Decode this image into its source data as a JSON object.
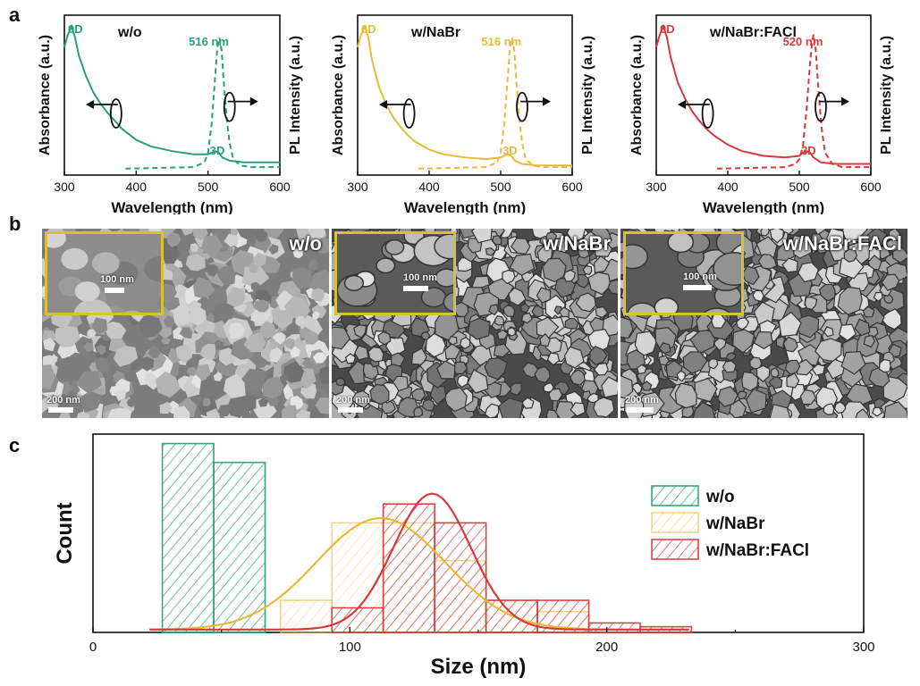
{
  "panel_letters": [
    "a",
    "b",
    "c"
  ],
  "colors": {
    "green": "#2e9e7a",
    "yellow": "#e8b93a",
    "red": "#d63a3a",
    "axis": "#111111",
    "inset_border": "#d6c13a"
  },
  "chart_data": [
    {
      "type": "line",
      "panel": "a",
      "xlabel": "Wavelength (nm)",
      "ylabel_left": "Absorbance (a.u.)",
      "ylabel_right": "PL Intensity (a.u.)",
      "xlim": [
        300,
        600
      ],
      "xticks": [
        300,
        400,
        500,
        600
      ],
      "sample_label": "w/o",
      "label_0d": "0D",
      "label_3d": "3D",
      "peak_label": "516 nm",
      "peak_nm": 516,
      "color": "#2e9e7a",
      "series": [
        {
          "name": "Absorbance",
          "style": "solid",
          "x": [
            300,
            305,
            310,
            315,
            320,
            330,
            340,
            350,
            360,
            370,
            380,
            400,
            420,
            450,
            480,
            500,
            505,
            510,
            515,
            520,
            530,
            550,
            600
          ],
          "y": [
            0.8,
            0.88,
            0.93,
            0.86,
            0.75,
            0.62,
            0.52,
            0.45,
            0.39,
            0.34,
            0.29,
            0.22,
            0.18,
            0.15,
            0.13,
            0.13,
            0.14,
            0.15,
            0.14,
            0.11,
            0.09,
            0.08,
            0.08
          ]
        },
        {
          "name": "PL",
          "style": "dashed",
          "x": [
            385,
            480,
            495,
            500,
            505,
            510,
            513,
            516,
            519,
            522,
            526,
            530,
            535,
            545,
            560,
            600
          ],
          "y": [
            0.04,
            0.05,
            0.08,
            0.14,
            0.32,
            0.62,
            0.8,
            0.86,
            0.78,
            0.58,
            0.35,
            0.2,
            0.1,
            0.06,
            0.05,
            0.05
          ]
        }
      ]
    },
    {
      "type": "line",
      "panel": "a",
      "xlabel": "Wavelength (nm)",
      "ylabel_left": "Absorbance (a.u.)",
      "ylabel_right": "PL Intensity (a.u.)",
      "xlim": [
        300,
        600
      ],
      "xticks": [
        300,
        400,
        500,
        600
      ],
      "sample_label": "w/NaBr",
      "label_0d": "0D",
      "label_3d": "3D",
      "peak_label": "516 nm",
      "peak_nm": 516,
      "color": "#e8b93a",
      "series": [
        {
          "name": "Absorbance",
          "style": "solid",
          "x": [
            300,
            305,
            310,
            315,
            320,
            330,
            340,
            350,
            360,
            370,
            380,
            400,
            420,
            450,
            480,
            500,
            505,
            510,
            515,
            520,
            530,
            550,
            600
          ],
          "y": [
            0.8,
            0.88,
            0.93,
            0.86,
            0.72,
            0.55,
            0.44,
            0.36,
            0.3,
            0.25,
            0.21,
            0.16,
            0.13,
            0.11,
            0.1,
            0.11,
            0.12,
            0.13,
            0.12,
            0.09,
            0.07,
            0.06,
            0.06
          ]
        },
        {
          "name": "PL",
          "style": "dashed",
          "x": [
            385,
            480,
            495,
            500,
            505,
            510,
            513,
            516,
            519,
            522,
            526,
            530,
            535,
            545,
            560,
            600
          ],
          "y": [
            0.04,
            0.05,
            0.08,
            0.14,
            0.32,
            0.62,
            0.8,
            0.86,
            0.78,
            0.58,
            0.35,
            0.2,
            0.1,
            0.06,
            0.05,
            0.05
          ]
        }
      ]
    },
    {
      "type": "line",
      "panel": "a",
      "xlabel": "Wavelength (nm)",
      "ylabel_left": "Absorbance (a.u.)",
      "ylabel_right": "PL Intensity (a.u.)",
      "xlim": [
        300,
        600
      ],
      "xticks": [
        300,
        400,
        500,
        600
      ],
      "sample_label": "w/NaBr:FACl",
      "label_0d": "0D",
      "label_3d": "3D",
      "peak_label": "520 nm",
      "peak_nm": 520,
      "color": "#d63a3a",
      "series": [
        {
          "name": "Absorbance",
          "style": "solid",
          "x": [
            300,
            305,
            310,
            315,
            320,
            330,
            340,
            350,
            360,
            370,
            380,
            400,
            420,
            450,
            480,
            500,
            505,
            510,
            515,
            520,
            530,
            550,
            600
          ],
          "y": [
            0.8,
            0.88,
            0.93,
            0.86,
            0.74,
            0.58,
            0.48,
            0.4,
            0.34,
            0.29,
            0.25,
            0.19,
            0.15,
            0.12,
            0.11,
            0.12,
            0.14,
            0.15,
            0.14,
            0.11,
            0.08,
            0.07,
            0.07
          ]
        },
        {
          "name": "PL",
          "style": "dashed",
          "x": [
            385,
            480,
            495,
            500,
            505,
            510,
            515,
            518,
            520,
            523,
            527,
            531,
            536,
            546,
            560,
            600
          ],
          "y": [
            0.04,
            0.05,
            0.07,
            0.1,
            0.18,
            0.4,
            0.7,
            0.84,
            0.88,
            0.78,
            0.52,
            0.3,
            0.14,
            0.07,
            0.05,
            0.05
          ]
        }
      ]
    },
    {
      "type": "bar",
      "panel": "c",
      "xlabel": "Size (nm)",
      "ylabel": "Count",
      "xlim": [
        0,
        300
      ],
      "xticks": [
        0,
        100,
        200,
        300
      ],
      "ylim": [
        0,
        1.05
      ],
      "legend": "top-right",
      "series": [
        {
          "name": "w/o",
          "color": "#2e9e7a",
          "bins": [
            [
              27,
              47,
              1.0
            ],
            [
              47,
              67,
              0.9
            ]
          ]
        },
        {
          "name": "w/NaBr",
          "color": "#e8b93a",
          "bins": [
            [
              73,
              93,
              0.17
            ],
            [
              93,
              113,
              0.58
            ],
            [
              113,
              133,
              0.58
            ],
            [
              133,
              153,
              0.38
            ],
            [
              153,
              173,
              0.17
            ],
            [
              173,
              193,
              0.11
            ]
          ],
          "fit": {
            "mu": 112,
            "sigma": 25,
            "amp": 0.59
          }
        },
        {
          "name": "w/NaBr:FACl",
          "color": "#d63a3a",
          "bins": [
            [
              93,
              113,
              0.13
            ],
            [
              113,
              133,
              0.68
            ],
            [
              133,
              153,
              0.58
            ],
            [
              153,
              173,
              0.17
            ],
            [
              173,
              193,
              0.17
            ],
            [
              193,
              213,
              0.05
            ],
            [
              213,
              233,
              0.03
            ]
          ],
          "fit": {
            "mu": 132,
            "sigma": 15,
            "amp": 0.72
          }
        }
      ]
    }
  ],
  "sem_images": [
    {
      "label": "w/o",
      "inset_scale": "100 nm",
      "main_scale": "200 nm"
    },
    {
      "label": "w/NaBr",
      "inset_scale": "100 nm",
      "main_scale": "200 nm"
    },
    {
      "label": "w/NaBr:FACl",
      "inset_scale": "100 nm",
      "main_scale": "200 nm"
    }
  ]
}
